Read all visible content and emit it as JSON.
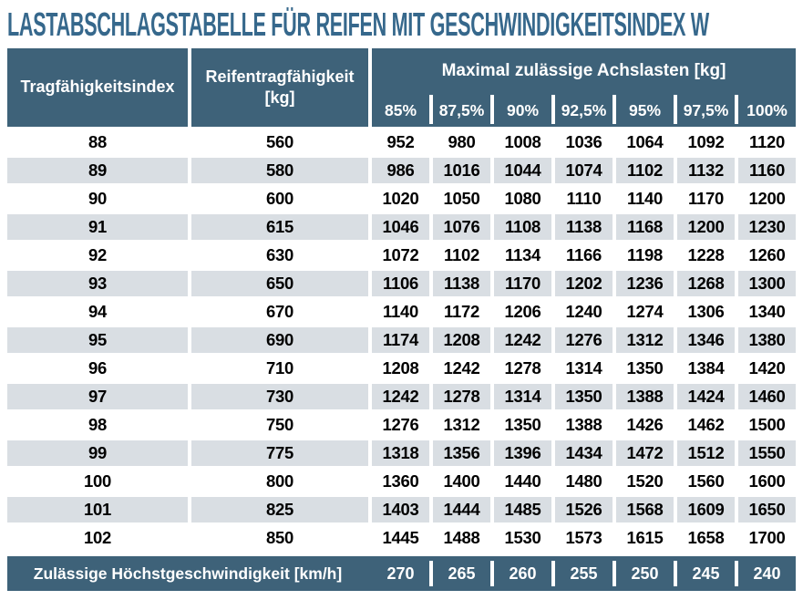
{
  "title": "LASTABSCHLAGSTABELLE FÜR REIFEN MIT GESCHWINDIGKEITSINDEX W",
  "colors": {
    "header_dark": "#3e6279",
    "title_blue": "#36688c",
    "row_alternate": "#d9dee3"
  },
  "table": {
    "col1_header": "Tragfähigkeitsindex",
    "col2_header_line1": "Reifentragfähigkeit",
    "col2_header_line2": "[kg]",
    "axle_loads_header": "Maximal zulässige Achslasten [kg]",
    "percent_headers": [
      "85%",
      "87,5%",
      "90%",
      "92,5%",
      "95%",
      "97,5%",
      "100%"
    ],
    "rows": [
      {
        "index": "88",
        "capacity": "560",
        "loads": [
          "952",
          "980",
          "1008",
          "1036",
          "1064",
          "1092",
          "1120"
        ]
      },
      {
        "index": "89",
        "capacity": "580",
        "loads": [
          "986",
          "1016",
          "1044",
          "1074",
          "1102",
          "1132",
          "1160"
        ]
      },
      {
        "index": "90",
        "capacity": "600",
        "loads": [
          "1020",
          "1050",
          "1080",
          "1110",
          "1140",
          "1170",
          "1200"
        ]
      },
      {
        "index": "91",
        "capacity": "615",
        "loads": [
          "1046",
          "1076",
          "1108",
          "1138",
          "1168",
          "1200",
          "1230"
        ]
      },
      {
        "index": "92",
        "capacity": "630",
        "loads": [
          "1072",
          "1102",
          "1134",
          "1166",
          "1198",
          "1228",
          "1260"
        ]
      },
      {
        "index": "93",
        "capacity": "650",
        "loads": [
          "1106",
          "1138",
          "1170",
          "1202",
          "1236",
          "1268",
          "1300"
        ]
      },
      {
        "index": "94",
        "capacity": "670",
        "loads": [
          "1140",
          "1172",
          "1206",
          "1240",
          "1274",
          "1306",
          "1340"
        ]
      },
      {
        "index": "95",
        "capacity": "690",
        "loads": [
          "1174",
          "1208",
          "1242",
          "1276",
          "1312",
          "1346",
          "1380"
        ]
      },
      {
        "index": "96",
        "capacity": "710",
        "loads": [
          "1208",
          "1242",
          "1278",
          "1314",
          "1350",
          "1384",
          "1420"
        ]
      },
      {
        "index": "97",
        "capacity": "730",
        "loads": [
          "1242",
          "1278",
          "1314",
          "1350",
          "1388",
          "1424",
          "1460"
        ]
      },
      {
        "index": "98",
        "capacity": "750",
        "loads": [
          "1276",
          "1312",
          "1350",
          "1388",
          "1426",
          "1462",
          "1500"
        ]
      },
      {
        "index": "99",
        "capacity": "775",
        "loads": [
          "1318",
          "1356",
          "1396",
          "1434",
          "1472",
          "1512",
          "1550"
        ]
      },
      {
        "index": "100",
        "capacity": "800",
        "loads": [
          "1360",
          "1400",
          "1440",
          "1480",
          "1520",
          "1560",
          "1600"
        ]
      },
      {
        "index": "101",
        "capacity": "825",
        "loads": [
          "1403",
          "1444",
          "1485",
          "1526",
          "1568",
          "1609",
          "1650"
        ]
      },
      {
        "index": "102",
        "capacity": "850",
        "loads": [
          "1445",
          "1488",
          "1530",
          "1573",
          "1615",
          "1658",
          "1700"
        ]
      }
    ],
    "footer": {
      "label": "Zulässige Höchstgeschwindigkeit [km/h]",
      "speeds": [
        "270",
        "265",
        "260",
        "255",
        "250",
        "245",
        "240"
      ]
    }
  }
}
